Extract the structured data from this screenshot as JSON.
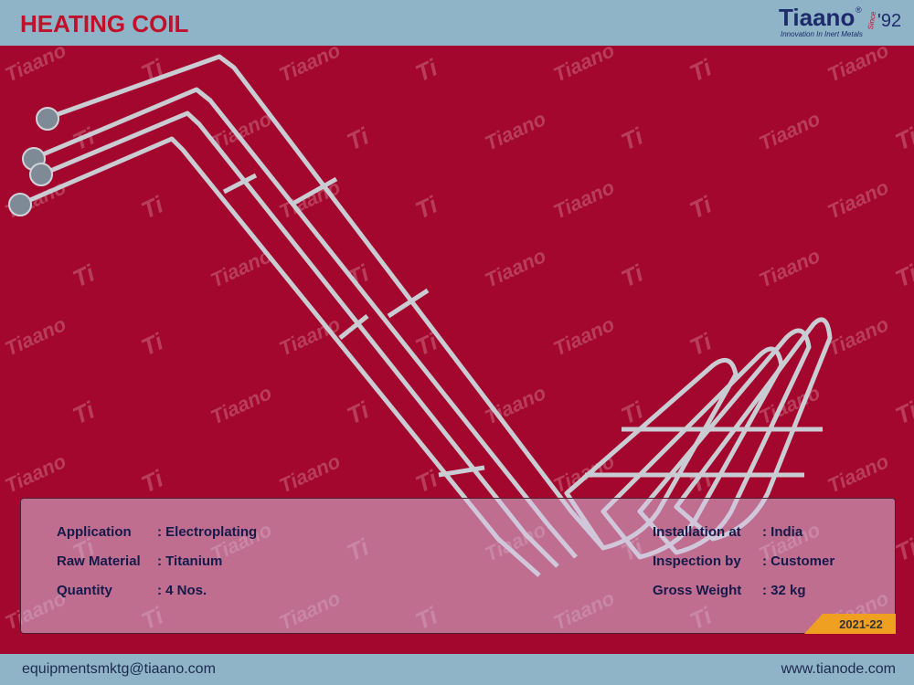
{
  "header": {
    "title": "HEATING COIL",
    "logo": {
      "name": "Tiaano",
      "reg": "®",
      "tagline": "Innovation In Inert Metals",
      "since": "Since",
      "year": "'92"
    }
  },
  "watermark": {
    "text": "Tiaano",
    "mark": "Ti"
  },
  "details": {
    "left": [
      {
        "label": "Application",
        "value": ": Electroplating"
      },
      {
        "label": "Raw Material",
        "value": ": Titanium"
      },
      {
        "label": "Quantity",
        "value": ": 4 Nos."
      }
    ],
    "right": [
      {
        "label": "Installation at",
        "value": ": India"
      },
      {
        "label": "Inspection by",
        "value": ": Customer"
      },
      {
        "label": "Gross Weight",
        "value": ":  32 kg"
      }
    ]
  },
  "year": "2021-22",
  "footer": {
    "email": "equipmentsmktg@tiaano.com",
    "website": "www.tianode.com"
  }
}
